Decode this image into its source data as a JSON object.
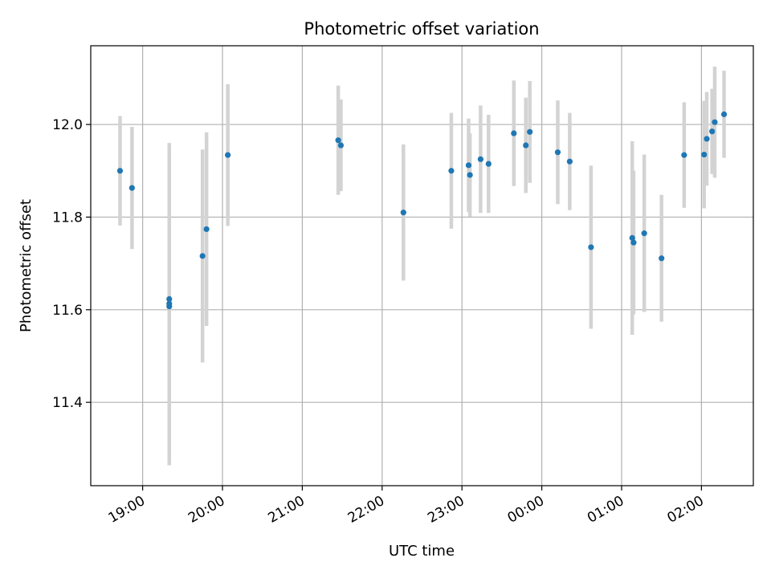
{
  "chart_data": {
    "type": "scatter",
    "title": "Photometric offset variation",
    "xlabel": "UTC time",
    "ylabel": "Photometric offset",
    "x_ticks": [
      "19:00",
      "20:00",
      "21:00",
      "22:00",
      "23:00",
      "00:00",
      "01:00",
      "02:00"
    ],
    "x_tick_times": [
      "19:00",
      "20:00",
      "21:00",
      "22:00",
      "23:00",
      "00:00",
      "01:00",
      "02:00"
    ],
    "y_ticks": [
      "11.4",
      "11.6",
      "11.8",
      "12.0"
    ],
    "y_tick_values": [
      11.4,
      11.6,
      11.8,
      12.0
    ],
    "xlim": [
      "18:21",
      "02:39"
    ],
    "ylim": [
      11.22,
      12.17
    ],
    "grid": true,
    "colors": {
      "points": "#1f77b4",
      "errorbars": "#d3d3d3",
      "grid": "#b0b0b0",
      "axes": "#000000"
    },
    "points": [
      {
        "time": "18:43",
        "y": 11.9,
        "err": 0.118
      },
      {
        "time": "18:52",
        "y": 11.863,
        "err": 0.132
      },
      {
        "time": "19:20",
        "y": 11.623,
        "err": 0.337
      },
      {
        "time": "19:20",
        "y": 11.613,
        "err": 0.337
      },
      {
        "time": "19:20",
        "y": 11.607,
        "err": 0.343
      },
      {
        "time": "19:45",
        "y": 11.716,
        "err": 0.23
      },
      {
        "time": "19:48",
        "y": 11.774,
        "err": 0.209
      },
      {
        "time": "20:04",
        "y": 11.934,
        "err": 0.153
      },
      {
        "time": "21:27",
        "y": 11.966,
        "err": 0.118
      },
      {
        "time": "21:29",
        "y": 11.955,
        "err": 0.099
      },
      {
        "time": "22:16",
        "y": 11.81,
        "err": 0.147
      },
      {
        "time": "22:52",
        "y": 11.9,
        "err": 0.125
      },
      {
        "time": "23:05",
        "y": 11.912,
        "err": 0.101
      },
      {
        "time": "23:06",
        "y": 11.891,
        "err": 0.09
      },
      {
        "time": "23:14",
        "y": 11.925,
        "err": 0.116
      },
      {
        "time": "23:20",
        "y": 11.915,
        "err": 0.106
      },
      {
        "time": "23:39",
        "y": 11.981,
        "err": 0.114
      },
      {
        "time": "23:48",
        "y": 11.955,
        "err": 0.103
      },
      {
        "time": "23:51",
        "y": 11.984,
        "err": 0.11
      },
      {
        "time": "00:12",
        "y": 11.94,
        "err": 0.112
      },
      {
        "time": "00:21",
        "y": 11.92,
        "err": 0.105
      },
      {
        "time": "00:37",
        "y": 11.735,
        "err": 0.176
      },
      {
        "time": "01:08",
        "y": 11.755,
        "err": 0.209
      },
      {
        "time": "01:09",
        "y": 11.745,
        "err": 0.155
      },
      {
        "time": "01:17",
        "y": 11.765,
        "err": 0.17
      },
      {
        "time": "01:30",
        "y": 11.711,
        "err": 0.137
      },
      {
        "time": "01:47",
        "y": 11.934,
        "err": 0.114
      },
      {
        "time": "02:02",
        "y": 11.935,
        "err": 0.116
      },
      {
        "time": "02:04",
        "y": 11.969,
        "err": 0.101
      },
      {
        "time": "02:08",
        "y": 11.985,
        "err": 0.092
      },
      {
        "time": "02:10",
        "y": 12.005,
        "err": 0.12
      },
      {
        "time": "02:17",
        "y": 12.022,
        "err": 0.094
      }
    ]
  }
}
